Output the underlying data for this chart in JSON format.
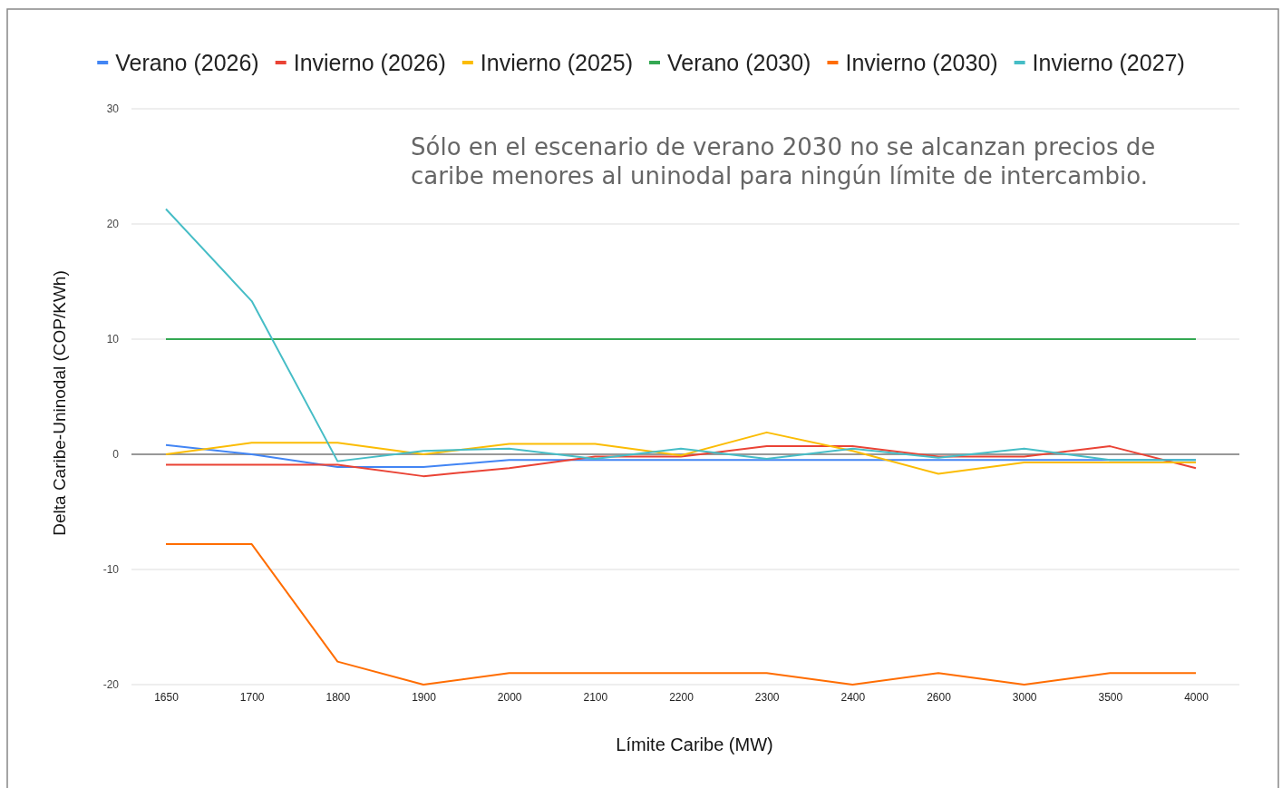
{
  "chart_data": {
    "type": "line",
    "xlabel": "Límite Caribe (MW)",
    "ylabel": "Delta Caribe-Uninodal (COP/KWh)",
    "categories": [
      "1650",
      "1700",
      "1800",
      "1900",
      "2000",
      "2100",
      "2200",
      "2300",
      "2400",
      "2600",
      "3000",
      "3500",
      "4000"
    ],
    "series": [
      {
        "name": "Verano (2026)",
        "color": "#4285f4",
        "values": [
          0.8,
          0,
          -1.1,
          -1.1,
          -0.5,
          -0.5,
          -0.5,
          -0.5,
          -0.5,
          -0.5,
          -0.5,
          -0.5,
          -0.5
        ]
      },
      {
        "name": "Invierno (2026)",
        "color": "#ea4335",
        "values": [
          -0.9,
          -0.9,
          -0.9,
          -1.9,
          -1.2,
          -0.2,
          -0.2,
          0.7,
          0.7,
          -0.2,
          -0.2,
          0.7,
          -1.2
        ]
      },
      {
        "name": "Invierno (2025)",
        "color": "#fbbc04",
        "values": [
          0,
          1,
          1,
          0,
          0.9,
          0.9,
          -0.1,
          1.9,
          0.3,
          -1.7,
          -0.7,
          -0.7,
          -0.7
        ]
      },
      {
        "name": "Verano (2030)",
        "color": "#34a853",
        "values": [
          10,
          10,
          10,
          10,
          10,
          10,
          10,
          10,
          10,
          10,
          10,
          10,
          10
        ]
      },
      {
        "name": "Invierno (2030)",
        "color": "#ff6d01",
        "values": [
          -7.8,
          -7.8,
          -18,
          -20,
          -19,
          -19,
          -19,
          -19,
          -20,
          -19,
          -20,
          -19,
          -19
        ]
      },
      {
        "name": "Invierno (2027)",
        "color": "#46bdc6",
        "values": [
          21.3,
          13.3,
          -0.6,
          0.3,
          0.5,
          -0.4,
          0.5,
          -0.4,
          0.5,
          -0.3,
          0.5,
          -0.5,
          -0.5
        ]
      }
    ],
    "ylim": [
      -20,
      30
    ],
    "yticks": [
      -20,
      -10,
      0,
      10,
      20,
      30
    ],
    "grid": "y",
    "legend": "top",
    "marker": "none",
    "line_style": "solid",
    "annotations": [
      "Sólo en el escenario de verano 2030 no se alcanzan precios de caribe menores al uninodal para ningún límite de intercambio."
    ]
  }
}
